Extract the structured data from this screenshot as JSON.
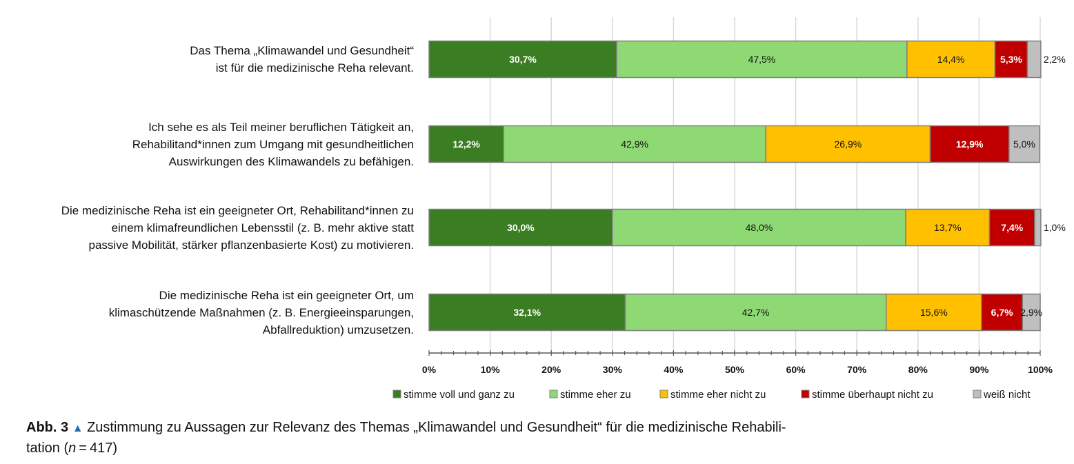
{
  "chart_data": {
    "type": "bar",
    "orientation": "horizontal",
    "stacked": "percent",
    "categories": [
      [
        "Das Thema „Klimawandel und Gesundheit“",
        "ist für die medizinische Reha relevant."
      ],
      [
        "Ich sehe es als Teil meiner beruflichen Tätigkeit an,",
        "Rehabilitand*innen zum Umgang mit gesundheitlichen",
        "Auswirkungen des Klimawandels zu befähigen."
      ],
      [
        "Die medizinische Reha ist ein geeigneter Ort, Rehabilitand*innen zu",
        "einem klimafreundlichen Lebensstil (z. B. mehr aktive statt",
        "passive Mobilität, stärker pflanzenbasierte Kost) zu motivieren."
      ],
      [
        "Die medizinische Reha ist ein geeigneter Ort, um",
        "klimaschützende  Maßnahmen (z. B. Energieeinsparungen,",
        "Abfallreduktion) umzusetzen."
      ]
    ],
    "series": [
      {
        "name": "stimme voll und ganz zu",
        "color": "#3a7d22",
        "label_color": "#ffffff",
        "values": [
          30.7,
          12.2,
          30.0,
          32.1
        ],
        "labels": [
          "30,7%",
          "12,2%",
          "30,0%",
          "32,1%"
        ]
      },
      {
        "name": "stimme eher zu",
        "color": "#8ed973",
        "label_color": "#111111",
        "values": [
          47.5,
          42.9,
          48.0,
          42.7
        ],
        "labels": [
          "47,5%",
          "42,9%",
          "48,0%",
          "42,7%"
        ]
      },
      {
        "name": "stimme eher nicht zu",
        "color": "#ffc000",
        "label_color": "#111111",
        "values": [
          14.4,
          26.9,
          13.7,
          15.6
        ],
        "labels": [
          "14,4%",
          "26,9%",
          "13,7%",
          "15,6%"
        ]
      },
      {
        "name": "stimme überhaupt nicht zu",
        "color": "#c00000",
        "label_color": "#ffffff",
        "values": [
          5.3,
          12.9,
          7.4,
          6.7
        ],
        "labels": [
          "5,3%",
          "12,9%",
          "7,4%",
          "6,7%"
        ]
      },
      {
        "name": "weiß nicht",
        "color": "#bfbfbf",
        "label_color": "#111111",
        "values": [
          2.2,
          5.0,
          1.0,
          2.9
        ],
        "labels": [
          "2,2%",
          "5,0%",
          "1,0%",
          "2,9%"
        ]
      }
    ],
    "xlim": [
      0,
      100
    ],
    "xticks": [
      "0%",
      "10%",
      "20%",
      "30%",
      "40%",
      "50%",
      "60%",
      "70%",
      "80%",
      "90%",
      "100%"
    ],
    "grid": true,
    "legend": "bottom"
  },
  "caption": {
    "label": "Abb. 3",
    "marker": "▲",
    "text": "Zustimmung zu Aussagen zur Relevanz des Themas „Klimawandel und Gesundheit“ für die medizinische Rehabili-",
    "text2_prefix": "tation (",
    "n_symbol": "n",
    "text2_suffix": " = 417)"
  }
}
